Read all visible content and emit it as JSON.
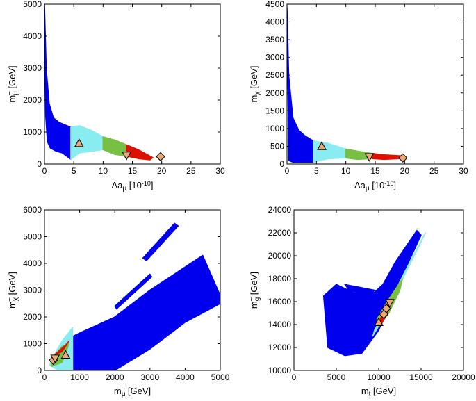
{
  "colors": {
    "blue": "#0000ee",
    "cyan": "#88ecf0",
    "green": "#77c044",
    "red": "#dd1100",
    "marker_fill": "#e8a878",
    "marker_stroke": "#000000"
  },
  "chart_data": [
    {
      "id": "p1",
      "type": "scatter",
      "xlabel": "Δa_μ [10^-10]",
      "xlabel_parts": {
        "main": "Δa",
        "sub": "μ",
        "unit": "[10",
        "exp": "-10",
        "close": "]"
      },
      "ylabel": "m_μ~ [GeV]",
      "ylabel_parts": {
        "main": "m",
        "sub": "μ",
        "tilde": "~",
        "unit": "[GeV]"
      },
      "xlim": [
        0,
        30
      ],
      "ylim": [
        0,
        5000
      ],
      "xticks": [
        0,
        5,
        10,
        15,
        20,
        25,
        30
      ],
      "yticks": [
        0,
        1000,
        2000,
        3000,
        4000,
        5000
      ],
      "regions": [
        {
          "color": "blue",
          "x": [
            0,
            0.3,
            0.8,
            1.5,
            2.5,
            4.5,
            4.5,
            3,
            2,
            1,
            0.5,
            0.2
          ],
          "y": [
            5000,
            3000,
            1900,
            1450,
            1300,
            1150,
            150,
            350,
            400,
            500,
            700,
            1500
          ]
        },
        {
          "color": "cyan",
          "x": [
            4.5,
            6,
            8,
            10,
            10,
            8,
            6,
            4.5
          ],
          "y": [
            1150,
            1200,
            1050,
            850,
            450,
            400,
            350,
            150
          ]
        },
        {
          "color": "green",
          "x": [
            10,
            12,
            14,
            14,
            12,
            10
          ],
          "y": [
            850,
            750,
            600,
            250,
            300,
            450
          ]
        },
        {
          "color": "red",
          "x": [
            14,
            16,
            18.5,
            18,
            16,
            14
          ],
          "y": [
            600,
            450,
            200,
            130,
            170,
            250
          ]
        }
      ],
      "markers": [
        {
          "shape": "triangle-up",
          "x": 5.9,
          "y": 650
        },
        {
          "shape": "triangle-down",
          "x": 14.0,
          "y": 270
        },
        {
          "shape": "diamond",
          "x": 19.8,
          "y": 230
        }
      ]
    },
    {
      "id": "p2",
      "type": "scatter",
      "xlabel": "Δa_μ [10^-10]",
      "xlabel_parts": {
        "main": "Δa",
        "sub": "μ",
        "unit": "[10",
        "exp": "-10",
        "close": "]"
      },
      "ylabel": "m_χ [GeV]",
      "ylabel_parts": {
        "main": "m",
        "sub": "χ",
        "tilde": "",
        "unit": "[GeV]"
      },
      "xlim": [
        0,
        30
      ],
      "ylim": [
        0,
        4500
      ],
      "xticks": [
        0,
        5,
        10,
        15,
        20,
        25,
        30
      ],
      "yticks": [
        0,
        500,
        1000,
        1500,
        2000,
        2500,
        3000,
        3500,
        4000,
        4500
      ],
      "regions": [
        {
          "color": "blue",
          "x": [
            0,
            0.3,
            1,
            2,
            3,
            4.5,
            4.5,
            2.5,
            1,
            0.3
          ],
          "y": [
            4400,
            2500,
            1300,
            950,
            800,
            650,
            50,
            50,
            50,
            100
          ]
        },
        {
          "color": "cyan",
          "x": [
            4.5,
            7,
            10,
            10,
            7,
            4.5
          ],
          "y": [
            650,
            580,
            420,
            170,
            150,
            50
          ]
        },
        {
          "color": "green",
          "x": [
            10,
            12.5,
            14.5,
            14.5,
            12,
            10
          ],
          "y": [
            420,
            350,
            300,
            150,
            130,
            170
          ]
        },
        {
          "color": "red",
          "x": [
            14.5,
            16.5,
            19.5,
            19,
            16.5,
            14.5
          ],
          "y": [
            300,
            260,
            230,
            150,
            130,
            150
          ]
        }
      ],
      "markers": [
        {
          "shape": "triangle-up",
          "x": 5.9,
          "y": 500
        },
        {
          "shape": "triangle-down",
          "x": 14.0,
          "y": 200
        },
        {
          "shape": "diamond",
          "x": 19.7,
          "y": 170
        }
      ]
    },
    {
      "id": "p3",
      "type": "scatter",
      "xlabel": "m_μ~ [GeV]",
      "xlabel_parts": {
        "main": "m",
        "sub": "μ",
        "tilde": "~",
        "unit": "[GeV]"
      },
      "ylabel": "m_χ~ [GeV]",
      "ylabel_parts": {
        "main": "m",
        "sub": "χ",
        "tilde": "~",
        "unit": "[GeV]"
      },
      "xlim": [
        0,
        5000
      ],
      "ylim": [
        0,
        6000
      ],
      "xticks": [
        0,
        1000,
        2000,
        3000,
        4000,
        5000
      ],
      "yticks": [
        0,
        1000,
        2000,
        3000,
        4000,
        5000,
        6000
      ],
      "regions": [
        {
          "color": "blue",
          "x": [
            700,
            1000,
            2000,
            3000,
            4500,
            5000,
            5000,
            4000,
            3000,
            2000,
            800
          ],
          "y": [
            1200,
            1400,
            2000,
            3000,
            4300,
            2800,
            2500,
            1800,
            800,
            0,
            0
          ]
        },
        {
          "color": "blue",
          "x": [
            2800,
            3700,
            3800,
            2900
          ],
          "y": [
            4200,
            5500,
            5400,
            4100
          ]
        },
        {
          "color": "blue",
          "x": [
            2000,
            3000,
            3050,
            2050
          ],
          "y": [
            2400,
            3600,
            3500,
            2300
          ]
        },
        {
          "color": "blue",
          "x": [
            1700,
            2500,
            2500,
            2100,
            1700
          ],
          "y": [
            1700,
            2400,
            2200,
            1700,
            1400
          ]
        },
        {
          "color": "cyan",
          "x": [
            200,
            500,
            800,
            800,
            400,
            150
          ],
          "y": [
            400,
            1100,
            1600,
            0,
            0,
            200
          ]
        },
        {
          "color": "green",
          "x": [
            200,
            500,
            700,
            500,
            200
          ],
          "y": [
            400,
            900,
            1000,
            300,
            150
          ]
        },
        {
          "color": "red",
          "x": [
            300,
            600,
            700,
            500
          ],
          "y": [
            600,
            950,
            1100,
            700
          ]
        }
      ],
      "markers": [
        {
          "shape": "diamond",
          "x": 250,
          "y": 380
        },
        {
          "shape": "triangle-down",
          "x": 300,
          "y": 450
        },
        {
          "shape": "triangle-up",
          "x": 600,
          "y": 580
        }
      ]
    },
    {
      "id": "p4",
      "type": "scatter",
      "xlabel": "m_t~ [GeV]",
      "xlabel_parts": {
        "main": "m",
        "sub": "t",
        "tilde": "~",
        "unit": "[GeV]"
      },
      "ylabel": "m_g~ [GeV]",
      "ylabel_parts": {
        "main": "m",
        "sub": "g",
        "tilde": "~",
        "unit": "[GeV]"
      },
      "xlim": [
        0,
        20000
      ],
      "ylim": [
        10000,
        24000
      ],
      "xticks": [
        0,
        5000,
        10000,
        15000,
        20000
      ],
      "yticks": [
        10000,
        12000,
        14000,
        16000,
        18000,
        20000,
        22000,
        24000
      ],
      "regions": [
        {
          "color": "blue",
          "x": [
            3500,
            5000,
            7000,
            9000,
            10500,
            12000,
            14500,
            15000,
            12000,
            10000,
            8000,
            6000,
            4000
          ],
          "y": [
            16500,
            17500,
            16800,
            16500,
            17500,
            19500,
            22200,
            21800,
            17000,
            13500,
            11500,
            11300,
            12000
          ]
        },
        {
          "color": "blue",
          "x": [
            6000,
            9500,
            9000,
            6500
          ],
          "y": [
            17500,
            17000,
            16500,
            17000
          ]
        },
        {
          "color": "cyan",
          "x": [
            9500,
            11000,
            13000,
            15500,
            15200,
            12500,
            10500,
            9300
          ],
          "y": [
            13500,
            15500,
            18500,
            22000,
            21500,
            17500,
            14500,
            13000
          ]
        },
        {
          "color": "green",
          "x": [
            9800,
            11000,
            12800,
            12500,
            11200,
            10000
          ],
          "y": [
            14500,
            16000,
            18000,
            17000,
            15000,
            13800
          ]
        },
        {
          "color": "red",
          "x": [
            10200,
            11000,
            11500,
            11000,
            10300
          ],
          "y": [
            14500,
            15800,
            16000,
            15000,
            14000
          ]
        }
      ],
      "markers": [
        {
          "shape": "triangle-up",
          "x": 10000,
          "y": 14200
        },
        {
          "shape": "diamond",
          "x": 10600,
          "y": 14900
        },
        {
          "shape": "diamond",
          "x": 10900,
          "y": 15400
        },
        {
          "shape": "triangle-down",
          "x": 11300,
          "y": 15900
        }
      ]
    }
  ]
}
